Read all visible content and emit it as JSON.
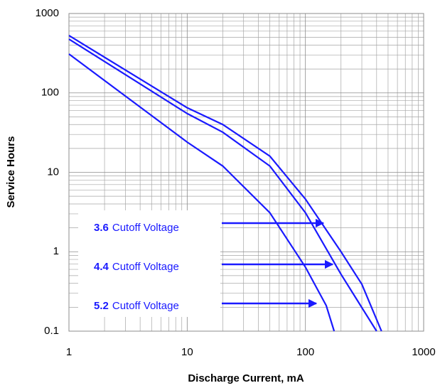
{
  "chart_data": {
    "type": "line",
    "xlabel": "Discharge Current, mA",
    "ylabel": "Service Hours",
    "log_x": true,
    "log_y": true,
    "grid": true,
    "xlim": [
      1,
      1000
    ],
    "xticks": [
      1,
      10,
      100,
      1000
    ],
    "ylim": [
      0.1,
      1000
    ],
    "yticks": [
      0.1,
      1,
      10,
      100,
      1000
    ],
    "series": [
      {
        "voltage": "3.6",
        "label": "Cutoff Voltage",
        "color": "#1a1aff",
        "x": [
          1,
          10,
          20,
          50,
          100,
          200,
          300,
          440
        ],
        "values": [
          528,
          65,
          40,
          16,
          4.6,
          1.0,
          0.39,
          0.1
        ]
      },
      {
        "voltage": "4.4",
        "label": "Cutoff Voltage",
        "color": "#1a1aff",
        "x": [
          1,
          10,
          20,
          50,
          100,
          200,
          400
        ],
        "values": [
          476,
          55,
          32,
          12,
          3.1,
          0.52,
          0.1
        ]
      },
      {
        "voltage": "5.2",
        "label": "Cutoff Voltage",
        "color": "#1a1aff",
        "x": [
          1,
          10,
          20,
          50,
          100,
          150,
          175
        ],
        "values": [
          309,
          24,
          12,
          3.1,
          0.64,
          0.21,
          0.1
        ]
      }
    ]
  }
}
